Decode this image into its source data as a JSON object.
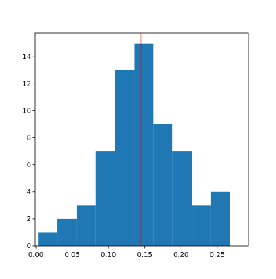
{
  "chart_data": {
    "type": "histogram",
    "bins": [
      0.003,
      0.0295,
      0.056,
      0.0825,
      0.109,
      0.1355,
      0.162,
      0.1885,
      0.215,
      0.2415,
      0.268
    ],
    "counts": [
      1,
      2,
      3,
      7,
      13,
      15,
      9,
      7,
      3,
      4
    ],
    "color": "#1f77b4",
    "vline": {
      "value": 0.145,
      "color": "#e00000"
    },
    "xlim": [
      -0.001,
      0.293
    ],
    "ylim": [
      0,
      15.75
    ],
    "xticks": [
      {
        "value": 0,
        "label": "0.00"
      },
      {
        "value": 0.05,
        "label": "0.05"
      },
      {
        "value": 0.1,
        "label": "0.10"
      },
      {
        "value": 0.15,
        "label": "0.15"
      },
      {
        "value": 0.2,
        "label": "0.20"
      },
      {
        "value": 0.25,
        "label": "0.25"
      }
    ],
    "yticks": [
      0,
      2,
      4,
      6,
      8,
      10,
      12,
      14
    ]
  }
}
